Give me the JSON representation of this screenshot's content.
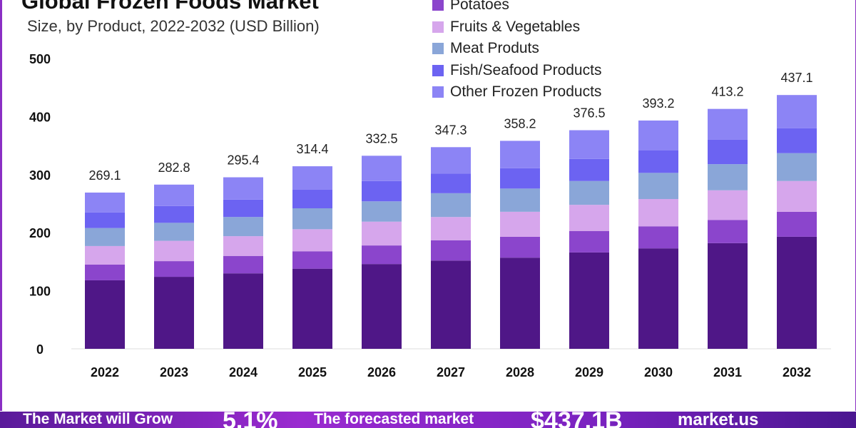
{
  "chart_data": {
    "type": "bar",
    "stacked": true,
    "title": "Global Frozen Foods Market",
    "subtitle": "Size, by Product, 2022-2032 (USD Billion)",
    "xlabel": "",
    "ylabel": "",
    "ylim": [
      0,
      500
    ],
    "yticks": [
      0,
      100,
      200,
      300,
      400,
      500
    ],
    "grid": false,
    "legend_position": "top-right",
    "categories": [
      "2022",
      "2023",
      "2024",
      "2025",
      "2026",
      "2027",
      "2028",
      "2029",
      "2030",
      "2031",
      "2032"
    ],
    "totals": [
      "269.1",
      "282.8",
      "295.4",
      "314.4",
      "332.5",
      "347.3",
      "358.2",
      "376.5",
      "393.2",
      "413.2",
      "437.1"
    ],
    "series": [
      {
        "color": "#4f1787",
        "values": [
          118,
          124,
          130,
          138,
          146,
          152,
          157,
          166,
          173,
          182,
          193
        ]
      },
      {
        "name": "Potatoes",
        "color": "#8b45cc",
        "values": [
          27,
          27,
          30,
          30,
          32,
          35,
          36,
          37,
          38,
          40,
          43
        ]
      },
      {
        "name": "Fruits & Vegetables",
        "color": "#d6a6ec",
        "values": [
          32,
          35,
          34,
          38,
          41,
          40,
          43,
          45,
          47,
          51,
          53
        ]
      },
      {
        "name": "Meat Produts",
        "color": "#8aa6d8",
        "values": [
          31,
          31,
          33,
          36,
          35,
          41,
          40,
          41,
          45,
          45,
          48
        ]
      },
      {
        "name": "Fish/Seafood Products",
        "color": "#6c63f2",
        "values": [
          27,
          29,
          30,
          32,
          35,
          34,
          35,
          38,
          39,
          42,
          43
        ]
      },
      {
        "name": "Other Frozen Products",
        "color": "#8c84f5",
        "values": [
          34.1,
          36.8,
          38.4,
          40.4,
          43.5,
          45.3,
          47.2,
          49.5,
          51.2,
          53.2,
          57.1
        ]
      }
    ]
  },
  "banner": {
    "grow_text": "The Market will Grow",
    "cagr": "5.1%",
    "forecast_text": "The forecasted market",
    "forecast_value": "$437.1B",
    "brand": "market.us"
  }
}
